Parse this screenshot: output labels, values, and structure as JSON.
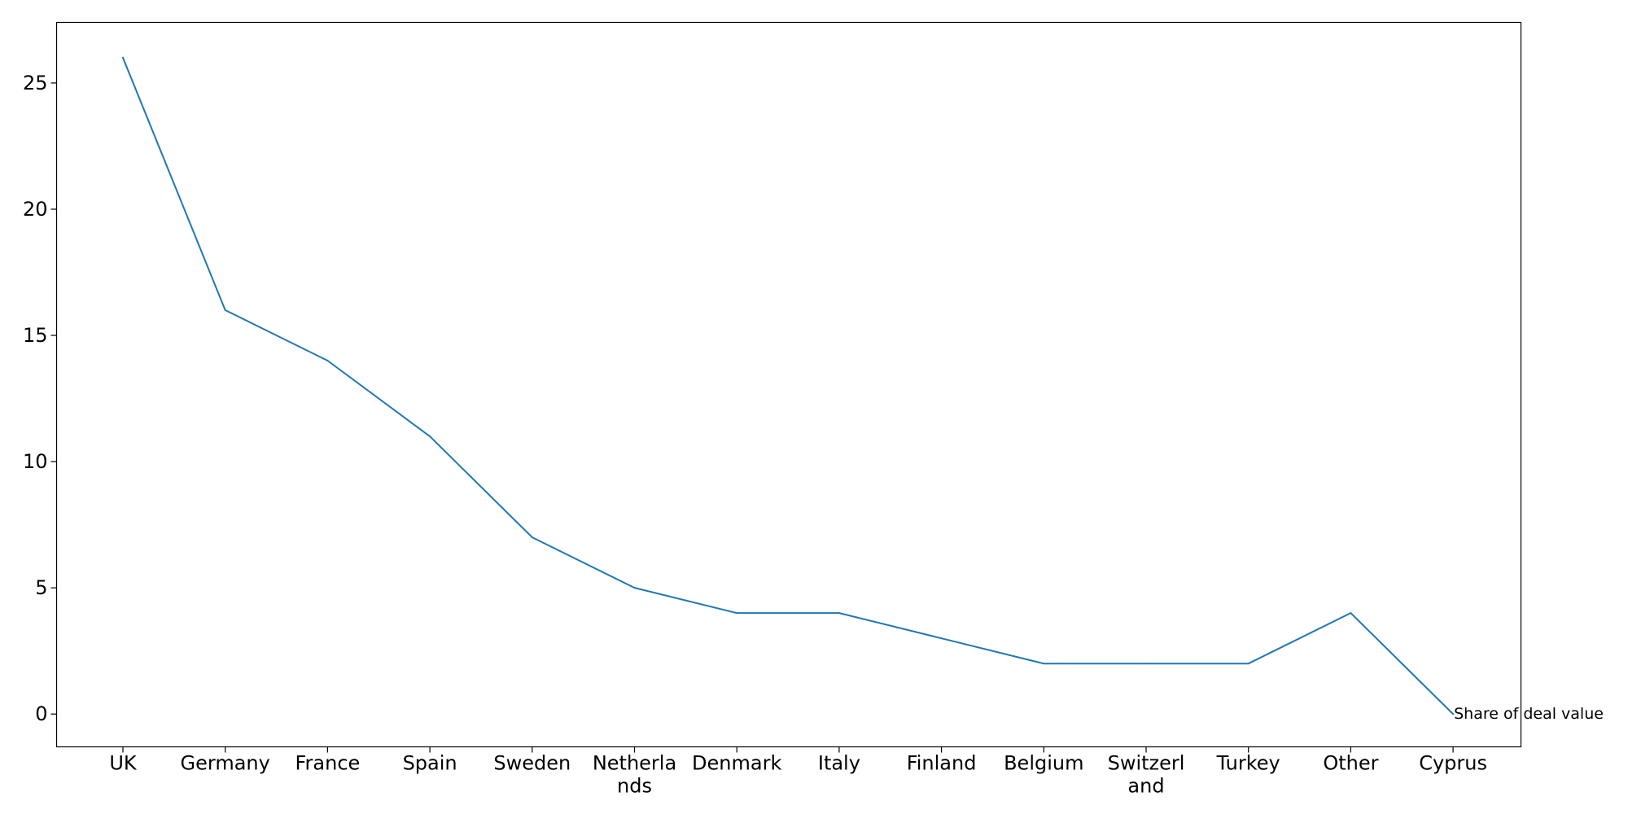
{
  "chart_data": {
    "type": "line",
    "title": "",
    "xlabel": "",
    "ylabel": "",
    "categories": [
      "UK",
      "Germany",
      "France",
      "Spain",
      "Sweden",
      "Netherlands",
      "Denmark",
      "Italy",
      "Finland",
      "Belgium",
      "Switzerland",
      "Turkey",
      "Other",
      "Cyprus"
    ],
    "category_labels": [
      [
        "UK"
      ],
      [
        "Germany"
      ],
      [
        "France"
      ],
      [
        "Spain"
      ],
      [
        "Sweden"
      ],
      [
        "Netherla",
        "nds"
      ],
      [
        "Denmark"
      ],
      [
        "Italy"
      ],
      [
        "Finland"
      ],
      [
        "Belgium"
      ],
      [
        "Switzerl",
        "and"
      ],
      [
        "Turkey"
      ],
      [
        "Other"
      ],
      [
        "Cyprus"
      ]
    ],
    "series": [
      {
        "name": "Share of deal value",
        "values": [
          26,
          16,
          14,
          11,
          7,
          5,
          4,
          4,
          3,
          2,
          2,
          2,
          4,
          0
        ],
        "color": "#1f77b4"
      }
    ],
    "annotation": {
      "text": "Share of deal value",
      "at_category": "Cyprus",
      "at_value": 0
    },
    "ylim": [
      -1.3,
      27.4
    ],
    "yticks": [
      0,
      5,
      10,
      15,
      20,
      25
    ],
    "grid": false,
    "legend": "none"
  }
}
